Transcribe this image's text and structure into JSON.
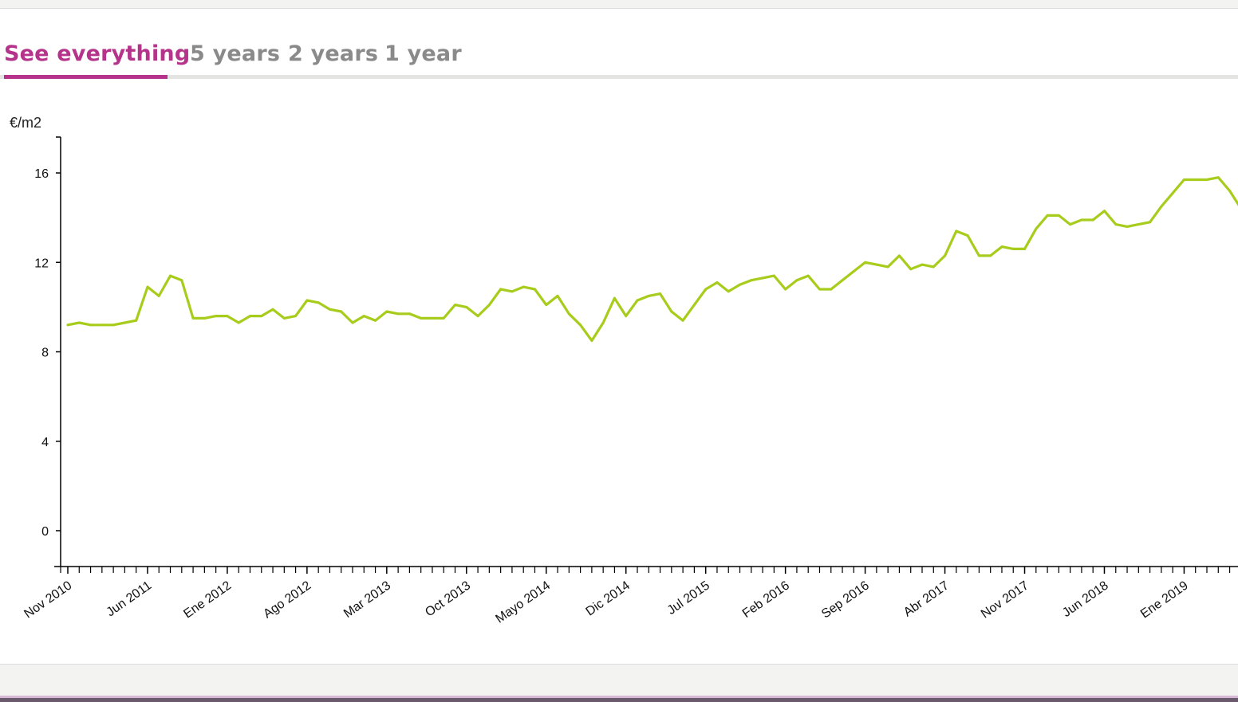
{
  "tabs": [
    {
      "label": "See everything",
      "active": true
    },
    {
      "label": "5 years",
      "active": false
    },
    {
      "label": "2 years",
      "active": false
    },
    {
      "label": "1 year",
      "active": false
    }
  ],
  "colors": {
    "accent": "#b5338a",
    "line": "#a8cc1c",
    "inactive_tab": "#8a8a8a"
  },
  "chart_data": {
    "type": "line",
    "ylabel": "€/m2",
    "ylim": [
      -1.6,
      17.5
    ],
    "yticks": [
      0,
      4,
      8,
      12,
      16
    ],
    "xticks": [
      "Nov 2010",
      "Jun 2011",
      "Ene 2012",
      "Ago 2012",
      "Mar 2013",
      "Oct 2013",
      "Mayo 2014",
      "Dic 2014",
      "Jul 2015",
      "Feb 2016",
      "Sep 2016",
      "Abr 2017",
      "Nov 2017",
      "Jun 2018",
      "Ene 2019"
    ],
    "x_start": "Nov 2010",
    "series": [
      {
        "values": [
          9.2,
          9.3,
          9.2,
          9.2,
          9.2,
          9.3,
          9.4,
          10.9,
          10.5,
          11.4,
          11.2,
          9.5,
          9.5,
          9.6,
          9.6,
          9.3,
          9.6,
          9.6,
          9.9,
          9.5,
          9.6,
          10.3,
          10.2,
          9.9,
          9.8,
          9.3,
          9.6,
          9.4,
          9.8,
          9.7,
          9.7,
          9.5,
          9.5,
          9.5,
          10.1,
          10.0,
          9.6,
          10.1,
          10.8,
          10.7,
          10.9,
          10.8,
          10.1,
          10.5,
          9.7,
          9.2,
          8.5,
          9.3,
          10.4,
          9.6,
          10.3,
          10.5,
          10.6,
          9.8,
          9.4,
          10.1,
          10.8,
          11.1,
          10.7,
          11.0,
          11.2,
          11.3,
          11.4,
          10.8,
          11.2,
          11.4,
          10.8,
          10.8,
          11.2,
          11.6,
          12.0,
          11.9,
          11.8,
          12.3,
          11.7,
          11.9,
          11.8,
          12.3,
          13.4,
          13.2,
          12.3,
          12.3,
          12.7,
          12.6,
          12.6,
          13.5,
          14.1,
          14.1,
          13.7,
          13.9,
          13.9,
          14.3,
          13.7,
          13.6,
          13.7,
          13.8,
          14.5,
          15.1,
          15.7,
          15.7,
          15.7,
          15.8,
          15.2,
          14.4
        ]
      }
    ]
  }
}
